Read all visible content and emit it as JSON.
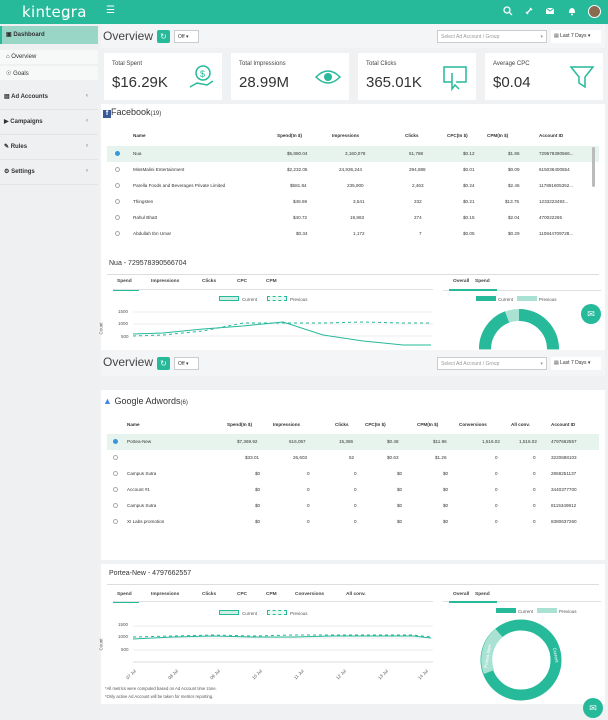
{
  "brand": {
    "name": "kintegra",
    "tag": "beta",
    "accent": "#26b99a"
  },
  "topbar_icons": [
    "search-icon",
    "link-icon",
    "mail-icon",
    "bell-icon",
    "user-avatar"
  ],
  "sidebar": {
    "dashboard": "Dashboard",
    "sub": [
      "Overview",
      "Goals"
    ],
    "items": [
      "Ad Accounts",
      "Campaigns",
      "Rules",
      "Settings"
    ]
  },
  "overview1": {
    "title": "Overview",
    "toggle": "Off",
    "account_placeholder": "Select Ad Account / Group",
    "days": "Last 7 Days"
  },
  "stats": [
    {
      "label": "Total Spent",
      "value": "$16.29K",
      "icon": "money-hand-icon"
    },
    {
      "label": "Total Impressions",
      "value": "28.99M",
      "icon": "eye-icon"
    },
    {
      "label": "Total Clicks",
      "value": "365.01K",
      "icon": "click-screen-icon"
    },
    {
      "label": "Average CPC",
      "value": "$0.04",
      "icon": "funnel-icon"
    }
  ],
  "facebook": {
    "title": "Facebook",
    "count": "(19)",
    "headers": [
      "Name",
      "Spend(In $)",
      "Impressions",
      "Clicks",
      "CPC(In $)",
      "CPM(In $)",
      "Account ID"
    ],
    "rows": [
      [
        "Nua",
        "$5,880.04",
        "3,160,078",
        "51,788",
        "$0.12",
        "$1.86",
        "729578390566..."
      ],
      [
        "MissMalini Entertainment",
        "$2,232.05",
        "24,936,244",
        "294,888",
        "$0.01",
        "$0.09",
        "615036400554"
      ],
      [
        "Parella Foods and Beverages Private Limited",
        "$581.84",
        "235,900",
        "2,463",
        "$0.24",
        "$2.46",
        "117891805352..."
      ],
      [
        "Thingsten",
        "$48.69",
        "3,541",
        "232",
        "$0.21",
        "$13.75",
        "1233223493..."
      ],
      [
        "Rahul Bhatt",
        "$40.72",
        "19,863",
        "274",
        "$0.15",
        "$2.04",
        "470022265"
      ],
      [
        "Abdullah Ibn Umar",
        "$0.34",
        "1,172",
        "7",
        "$0.05",
        "$0.29",
        "110844709728..."
      ]
    ]
  },
  "fb_chart": {
    "title": "Nua - 729578390566704",
    "tabs": [
      "Spend",
      "Impressions",
      "Clicks",
      "CPC",
      "CPM"
    ],
    "legend": [
      "Current",
      "Previous"
    ],
    "ylabel": "Count",
    "yticks": [
      "1500",
      "1000",
      "500"
    ],
    "overall_tabs": [
      "Overall",
      "Spend"
    ],
    "donut_labels": [
      "Nua",
      "Others"
    ]
  },
  "overview2": {
    "title": "Overview",
    "toggle": "Off",
    "account_placeholder": "Select Ad Account / Group",
    "days": "Last 7 Days"
  },
  "google": {
    "title": "Google Adwords",
    "count": "(6)",
    "headers": [
      "Name",
      "Spend(In $)",
      "Impressions",
      "Clicks",
      "CPC(In $)",
      "CPM(In $)",
      "Conversions",
      "All conv.",
      "Account ID"
    ],
    "rows": [
      [
        "Portea-New",
        "$7,369.92",
        "616,057",
        "15,386",
        "$0.48",
        "$11.96",
        "1,516.02",
        "1,516.02",
        "4797662557"
      ],
      [
        "",
        "$33.01",
        "26,603",
        "52",
        "$0.63",
        "$1.26",
        "0",
        "0",
        "3220688103"
      ],
      [
        "Campus Sutra",
        "$0",
        "0",
        "0",
        "$0",
        "$0",
        "0",
        "0",
        "2858251137"
      ],
      [
        "Account #1",
        "$0",
        "0",
        "0",
        "$0",
        "$0",
        "0",
        "0",
        "3440377700"
      ],
      [
        "Campus Sutra",
        "$0",
        "0",
        "0",
        "$0",
        "$0",
        "0",
        "0",
        "8115349812"
      ],
      [
        "XI Labs promotion",
        "$0",
        "0",
        "0",
        "$0",
        "$0",
        "0",
        "0",
        "8380637260"
      ]
    ]
  },
  "g_chart": {
    "title": "Portea-New - 4797662557",
    "tabs": [
      "Spend",
      "Impressions",
      "Clicks",
      "CPC",
      "CPM",
      "Conversions",
      "All conv."
    ],
    "legend": [
      "Current",
      "Previous"
    ],
    "ylabel": "Count",
    "yticks": [
      "1500",
      "1000",
      "500"
    ],
    "xticks": [
      "07 Jul",
      "08 Jul",
      "09 Jul",
      "10 Jul",
      "11 Jul",
      "12 Jul",
      "13 Jul",
      "14 Jul"
    ],
    "overall_tabs": [
      "Overall",
      "Spend"
    ],
    "donut_labels": [
      "Portea-New",
      "Others"
    ]
  },
  "footnotes": [
    "*All metrics were computed based on Ad Account time zone.",
    "*Only active Ad Account will be taken for metrics reporting."
  ]
}
